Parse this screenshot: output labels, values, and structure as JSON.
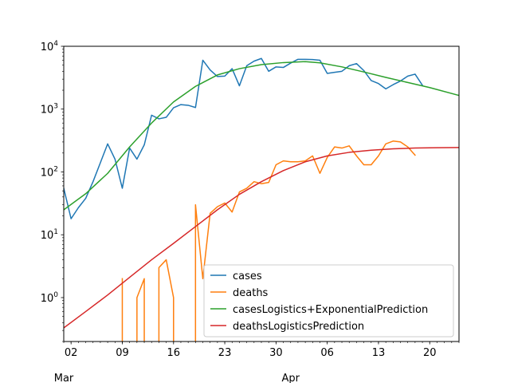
{
  "chart_data": {
    "type": "line",
    "title": "",
    "xlabel": "",
    "ylabel": "",
    "yscale": "log",
    "ylim": [
      0.2,
      10000
    ],
    "xlim": [
      "2020-03-01",
      "2020-04-24"
    ],
    "grid": false,
    "legend_position": "lower-right",
    "x_ticks": [
      {
        "date": "2020-03-02",
        "label": "02"
      },
      {
        "date": "2020-03-09",
        "label": "09"
      },
      {
        "date": "2020-03-16",
        "label": "16"
      },
      {
        "date": "2020-03-23",
        "label": "23"
      },
      {
        "date": "2020-03-30",
        "label": "30"
      },
      {
        "date": "2020-04-06",
        "label": "06"
      },
      {
        "date": "2020-04-13",
        "label": "13"
      },
      {
        "date": "2020-04-20",
        "label": "20"
      }
    ],
    "x_major_labels": [
      {
        "date": "2020-03-01",
        "label": "Mar"
      },
      {
        "date": "2020-04-01",
        "label": "Apr"
      }
    ],
    "y_ticks": [
      {
        "value": 1,
        "base": "10",
        "exp": "0"
      },
      {
        "value": 10,
        "base": "10",
        "exp": "1"
      },
      {
        "value": 100,
        "base": "10",
        "exp": "2"
      },
      {
        "value": 1000,
        "base": "10",
        "exp": "3"
      },
      {
        "value": 10000,
        "base": "10",
        "exp": "4"
      }
    ],
    "series": [
      {
        "name": "cases",
        "color": "#1f77b4",
        "points": [
          [
            "2020-03-01",
            55
          ],
          [
            "2020-03-02",
            18
          ],
          [
            "2020-03-03",
            27
          ],
          [
            "2020-03-04",
            38
          ],
          [
            "2020-03-05",
            70
          ],
          [
            "2020-03-06",
            140
          ],
          [
            "2020-03-07",
            280
          ],
          [
            "2020-03-08",
            160
          ],
          [
            "2020-03-09",
            55
          ],
          [
            "2020-03-10",
            240
          ],
          [
            "2020-03-11",
            160
          ],
          [
            "2020-03-12",
            270
          ],
          [
            "2020-03-13",
            800
          ],
          [
            "2020-03-14",
            700
          ],
          [
            "2020-03-15",
            740
          ],
          [
            "2020-03-16",
            1050
          ],
          [
            "2020-03-17",
            1180
          ],
          [
            "2020-03-18",
            1150
          ],
          [
            "2020-03-19",
            1060
          ],
          [
            "2020-03-20",
            6000
          ],
          [
            "2020-03-21",
            4200
          ],
          [
            "2020-03-22",
            3300
          ],
          [
            "2020-03-23",
            3350
          ],
          [
            "2020-03-24",
            4400
          ],
          [
            "2020-03-25",
            2350
          ],
          [
            "2020-03-26",
            4900
          ],
          [
            "2020-03-27",
            5800
          ],
          [
            "2020-03-28",
            6400
          ],
          [
            "2020-03-29",
            4000
          ],
          [
            "2020-03-30",
            4700
          ],
          [
            "2020-03-31",
            4600
          ],
          [
            "2020-04-01",
            5400
          ],
          [
            "2020-04-02",
            6200
          ],
          [
            "2020-04-03",
            6200
          ],
          [
            "2020-04-04",
            6150
          ],
          [
            "2020-04-05",
            6000
          ],
          [
            "2020-04-06",
            3700
          ],
          [
            "2020-04-07",
            3850
          ],
          [
            "2020-04-08",
            4000
          ],
          [
            "2020-04-09",
            4900
          ],
          [
            "2020-04-10",
            5300
          ],
          [
            "2020-04-11",
            4100
          ],
          [
            "2020-04-12",
            2850
          ],
          [
            "2020-04-13",
            2550
          ],
          [
            "2020-04-14",
            2100
          ],
          [
            "2020-04-15",
            2450
          ],
          [
            "2020-04-16",
            2800
          ],
          [
            "2020-04-17",
            3350
          ],
          [
            "2020-04-18",
            3600
          ],
          [
            "2020-04-19",
            2400
          ]
        ]
      },
      {
        "name": "deaths",
        "color": "#ff7f0e",
        "points": [
          [
            "2020-03-09",
            2
          ],
          [
            "2020-03-09",
            0.15
          ],
          [
            "2020-03-11",
            0.15
          ],
          [
            "2020-03-11",
            1
          ],
          [
            "2020-03-12",
            2
          ],
          [
            "2020-03-12",
            0.15
          ],
          [
            "2020-03-14",
            0.15
          ],
          [
            "2020-03-14",
            3
          ],
          [
            "2020-03-15",
            4
          ],
          [
            "2020-03-16",
            1
          ],
          [
            "2020-03-16",
            0.15
          ],
          [
            "2020-03-19",
            0.15
          ],
          [
            "2020-03-19",
            30
          ],
          [
            "2020-03-20",
            2
          ],
          [
            "2020-03-21",
            22
          ],
          [
            "2020-03-22",
            28
          ],
          [
            "2020-03-23",
            32
          ],
          [
            "2020-03-24",
            23
          ],
          [
            "2020-03-25",
            48
          ],
          [
            "2020-03-26",
            55
          ],
          [
            "2020-03-27",
            70
          ],
          [
            "2020-03-28",
            65
          ],
          [
            "2020-03-29",
            68
          ],
          [
            "2020-03-30",
            130
          ],
          [
            "2020-03-31",
            150
          ],
          [
            "2020-04-01",
            145
          ],
          [
            "2020-04-02",
            145
          ],
          [
            "2020-04-03",
            150
          ],
          [
            "2020-04-04",
            180
          ],
          [
            "2020-04-05",
            95
          ],
          [
            "2020-04-06",
            170
          ],
          [
            "2020-04-07",
            250
          ],
          [
            "2020-04-08",
            240
          ],
          [
            "2020-04-09",
            260
          ],
          [
            "2020-04-10",
            180
          ],
          [
            "2020-04-11",
            130
          ],
          [
            "2020-04-12",
            130
          ],
          [
            "2020-04-13",
            180
          ],
          [
            "2020-04-14",
            280
          ],
          [
            "2020-04-15",
            310
          ],
          [
            "2020-04-16",
            300
          ],
          [
            "2020-04-17",
            250
          ],
          [
            "2020-04-18",
            185
          ]
        ]
      },
      {
        "name": "casesLogistics+ExponentialPrediction",
        "color": "#2ca02c",
        "points": [
          [
            "2020-03-01",
            25
          ],
          [
            "2020-03-04",
            45
          ],
          [
            "2020-03-07",
            95
          ],
          [
            "2020-03-10",
            250
          ],
          [
            "2020-03-13",
            600
          ],
          [
            "2020-03-16",
            1300
          ],
          [
            "2020-03-19",
            2300
          ],
          [
            "2020-03-22",
            3500
          ],
          [
            "2020-03-25",
            4400
          ],
          [
            "2020-03-28",
            5100
          ],
          [
            "2020-03-31",
            5500
          ],
          [
            "2020-04-03",
            5700
          ],
          [
            "2020-04-05",
            5450
          ],
          [
            "2020-04-08",
            4700
          ],
          [
            "2020-04-11",
            3900
          ],
          [
            "2020-04-14",
            3200
          ],
          [
            "2020-04-17",
            2650
          ],
          [
            "2020-04-20",
            2200
          ],
          [
            "2020-04-24",
            1650
          ]
        ]
      },
      {
        "name": "deathsLogisticsPrediction",
        "color": "#d62728",
        "points": [
          [
            "2020-03-01",
            0.33
          ],
          [
            "2020-03-04",
            0.6
          ],
          [
            "2020-03-07",
            1.1
          ],
          [
            "2020-03-10",
            2.1
          ],
          [
            "2020-03-13",
            4.0
          ],
          [
            "2020-03-16",
            7.3
          ],
          [
            "2020-03-19",
            13.5
          ],
          [
            "2020-03-22",
            25
          ],
          [
            "2020-03-25",
            44
          ],
          [
            "2020-03-28",
            70
          ],
          [
            "2020-03-31",
            105
          ],
          [
            "2020-04-03",
            145
          ],
          [
            "2020-04-06",
            180
          ],
          [
            "2020-04-09",
            205
          ],
          [
            "2020-04-12",
            222
          ],
          [
            "2020-04-15",
            233
          ],
          [
            "2020-04-18",
            240
          ],
          [
            "2020-04-21",
            243
          ],
          [
            "2020-04-24",
            245
          ]
        ]
      }
    ]
  }
}
